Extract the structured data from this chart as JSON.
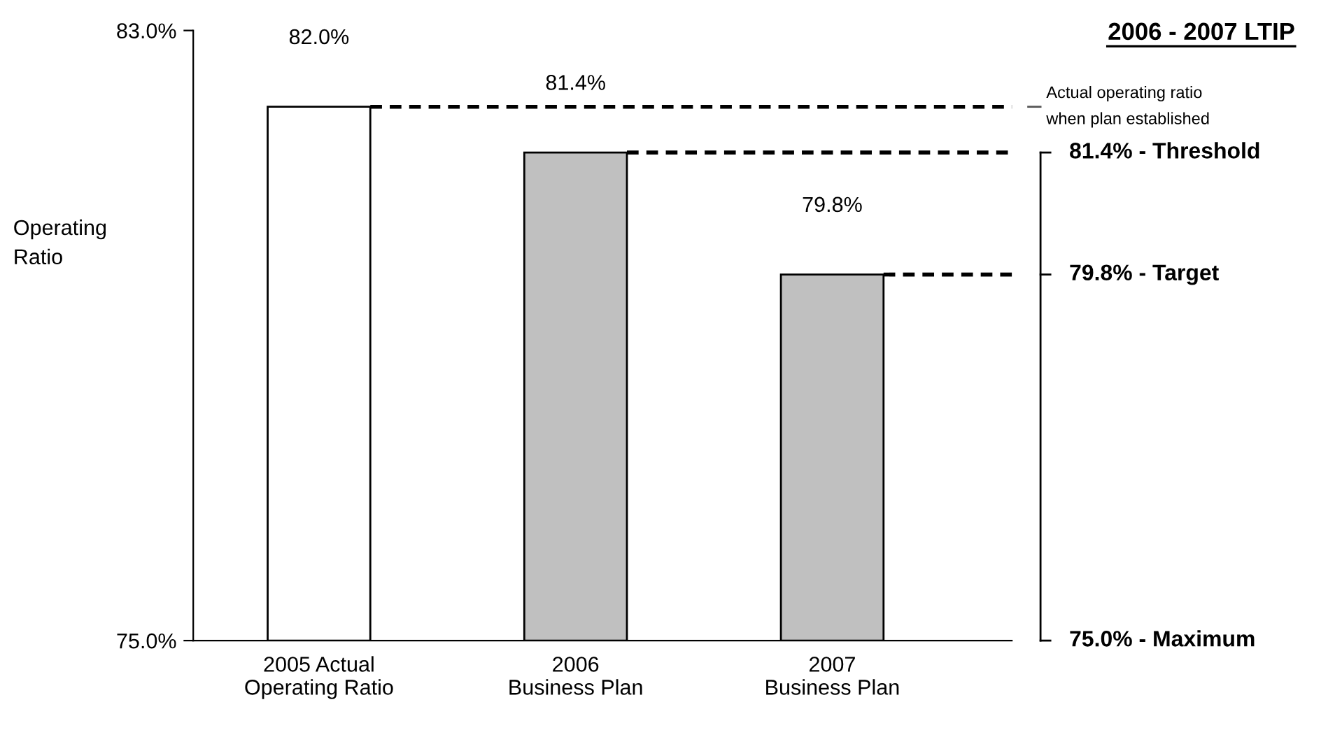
{
  "chart_data": {
    "type": "bar",
    "title": "2006 - 2007 LTIP",
    "ylabel": "Operating\nRatio",
    "categories": [
      "2005 Actual\nOperating Ratio",
      "2006\nBusiness Plan",
      "2007\nBusiness Plan"
    ],
    "values": [
      82.0,
      81.4,
      79.8
    ],
    "colors": [
      "#ffffff",
      "#c0c0c0",
      "#c0c0c0"
    ],
    "value_labels": [
      "82.0%",
      "81.4%",
      "79.8%"
    ],
    "ylim": [
      75,
      83
    ],
    "yticks": [
      {
        "value": 75,
        "label": "75.0%"
      },
      {
        "value": 83,
        "label": "83.0%"
      }
    ],
    "ref_lines": [
      {
        "axis": "y",
        "value": 82.0,
        "label": "Actual operating ratio\nwhen plan established",
        "line_style": "dashed",
        "color": "#000000"
      },
      {
        "axis": "y",
        "value": 81.4,
        "label": "81.4% - Threshold",
        "line_style": "dashed",
        "color": "#000000"
      },
      {
        "axis": "y",
        "value": 79.8,
        "label": "79.8% - Target",
        "line_style": "dashed",
        "color": "#000000"
      },
      {
        "axis": "y",
        "value": 75.0,
        "label": "75.0% - Maximum"
      }
    ],
    "grid": false,
    "legend": false
  }
}
